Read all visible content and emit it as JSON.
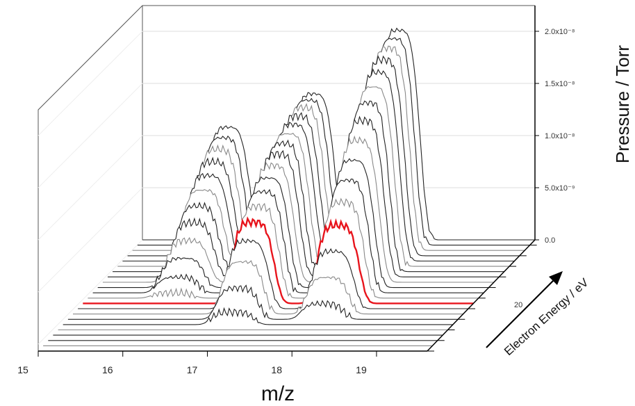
{
  "chart_data": {
    "type": "line",
    "subtype": "3d-waterfall",
    "xlabel": "m/z",
    "ylabel": "Pressure / Torr",
    "zlabel": "Electron Energy / eV",
    "x_ticks": [
      "15",
      "16",
      "17",
      "18",
      "19"
    ],
    "y_ticks": [
      "0.0",
      "5.0x10⁻⁹",
      "1.0x10⁻⁸",
      "1.5x10⁻⁸",
      "2.0x10⁻⁸"
    ],
    "z_tick_label": "20",
    "ylim": [
      0,
      2.2e-08
    ],
    "xlim": [
      15,
      19.6
    ],
    "gridlines": true,
    "highlight_color": "#e8141c",
    "trace_color": "#000000",
    "peaks": [
      {
        "mz": 16,
        "max_pressure": 1.1e-08
      },
      {
        "mz": 17,
        "max_pressure": 1.4e-08
      },
      {
        "mz": 18,
        "max_pressure": 2e-08
      }
    ],
    "series": [
      {
        "energy_index": 0,
        "peak_heights": [
          0.0,
          0.0,
          0.0
        ]
      },
      {
        "energy_index": 1,
        "peak_heights": [
          0.0,
          0.0,
          0.0
        ]
      },
      {
        "energy_index": 2,
        "peak_heights": [
          0.0,
          0.0,
          0.0
        ]
      },
      {
        "energy_index": 3,
        "peak_heights": [
          0.0,
          0.0,
          0.0
        ]
      },
      {
        "energy_index": 4,
        "peak_heights": [
          0.0,
          0.0,
          0.0
        ]
      },
      {
        "energy_index": 5,
        "peak_heights": [
          0.0,
          1.2e-09,
          0.0
        ]
      },
      {
        "energy_index": 6,
        "peak_heights": [
          0.0,
          3e-09,
          1.5e-09
        ]
      },
      {
        "energy_index": 7,
        "peak_heights": [
          0.0,
          5e-09,
          3.5e-09
        ]
      },
      {
        "energy_index": 8,
        "peak_heights": [
          0.0,
          6.5e-09,
          5.5e-09
        ]
      },
      {
        "energy_index": 9,
        "peak_heights": [
          0.0,
          7.8e-09,
          7.5e-09
        ],
        "highlight": true
      },
      {
        "energy_index": 10,
        "peak_heights": [
          5e-10,
          8.8e-09,
          9.2e-09
        ]
      },
      {
        "energy_index": 11,
        "peak_heights": [
          1.5e-09,
          9.7e-09,
          1.08e-08
        ]
      },
      {
        "energy_index": 12,
        "peak_heights": [
          2.8e-09,
          1.05e-08,
          1.22e-08
        ]
      },
      {
        "energy_index": 13,
        "peak_heights": [
          4e-09,
          1.12e-08,
          1.36e-08
        ]
      },
      {
        "energy_index": 14,
        "peak_heights": [
          5.2e-09,
          1.18e-08,
          1.5e-08
        ]
      },
      {
        "energy_index": 15,
        "peak_heights": [
          6.3e-09,
          1.23e-08,
          1.62e-08
        ]
      },
      {
        "energy_index": 16,
        "peak_heights": [
          7.3e-09,
          1.27e-08,
          1.72e-08
        ]
      },
      {
        "energy_index": 17,
        "peak_heights": [
          8.2e-09,
          1.31e-08,
          1.81e-08
        ]
      },
      {
        "energy_index": 18,
        "peak_heights": [
          9e-09,
          1.34e-08,
          1.88e-08
        ]
      },
      {
        "energy_index": 19,
        "peak_heights": [
          9.7e-09,
          1.37e-08,
          1.94e-08
        ]
      },
      {
        "energy_index": 20,
        "peak_heights": [
          1.03e-08,
          1.39e-08,
          1.98e-08
        ]
      },
      {
        "energy_index": 21,
        "peak_heights": [
          1.08e-08,
          1.4e-08,
          2.01e-08
        ]
      }
    ]
  }
}
